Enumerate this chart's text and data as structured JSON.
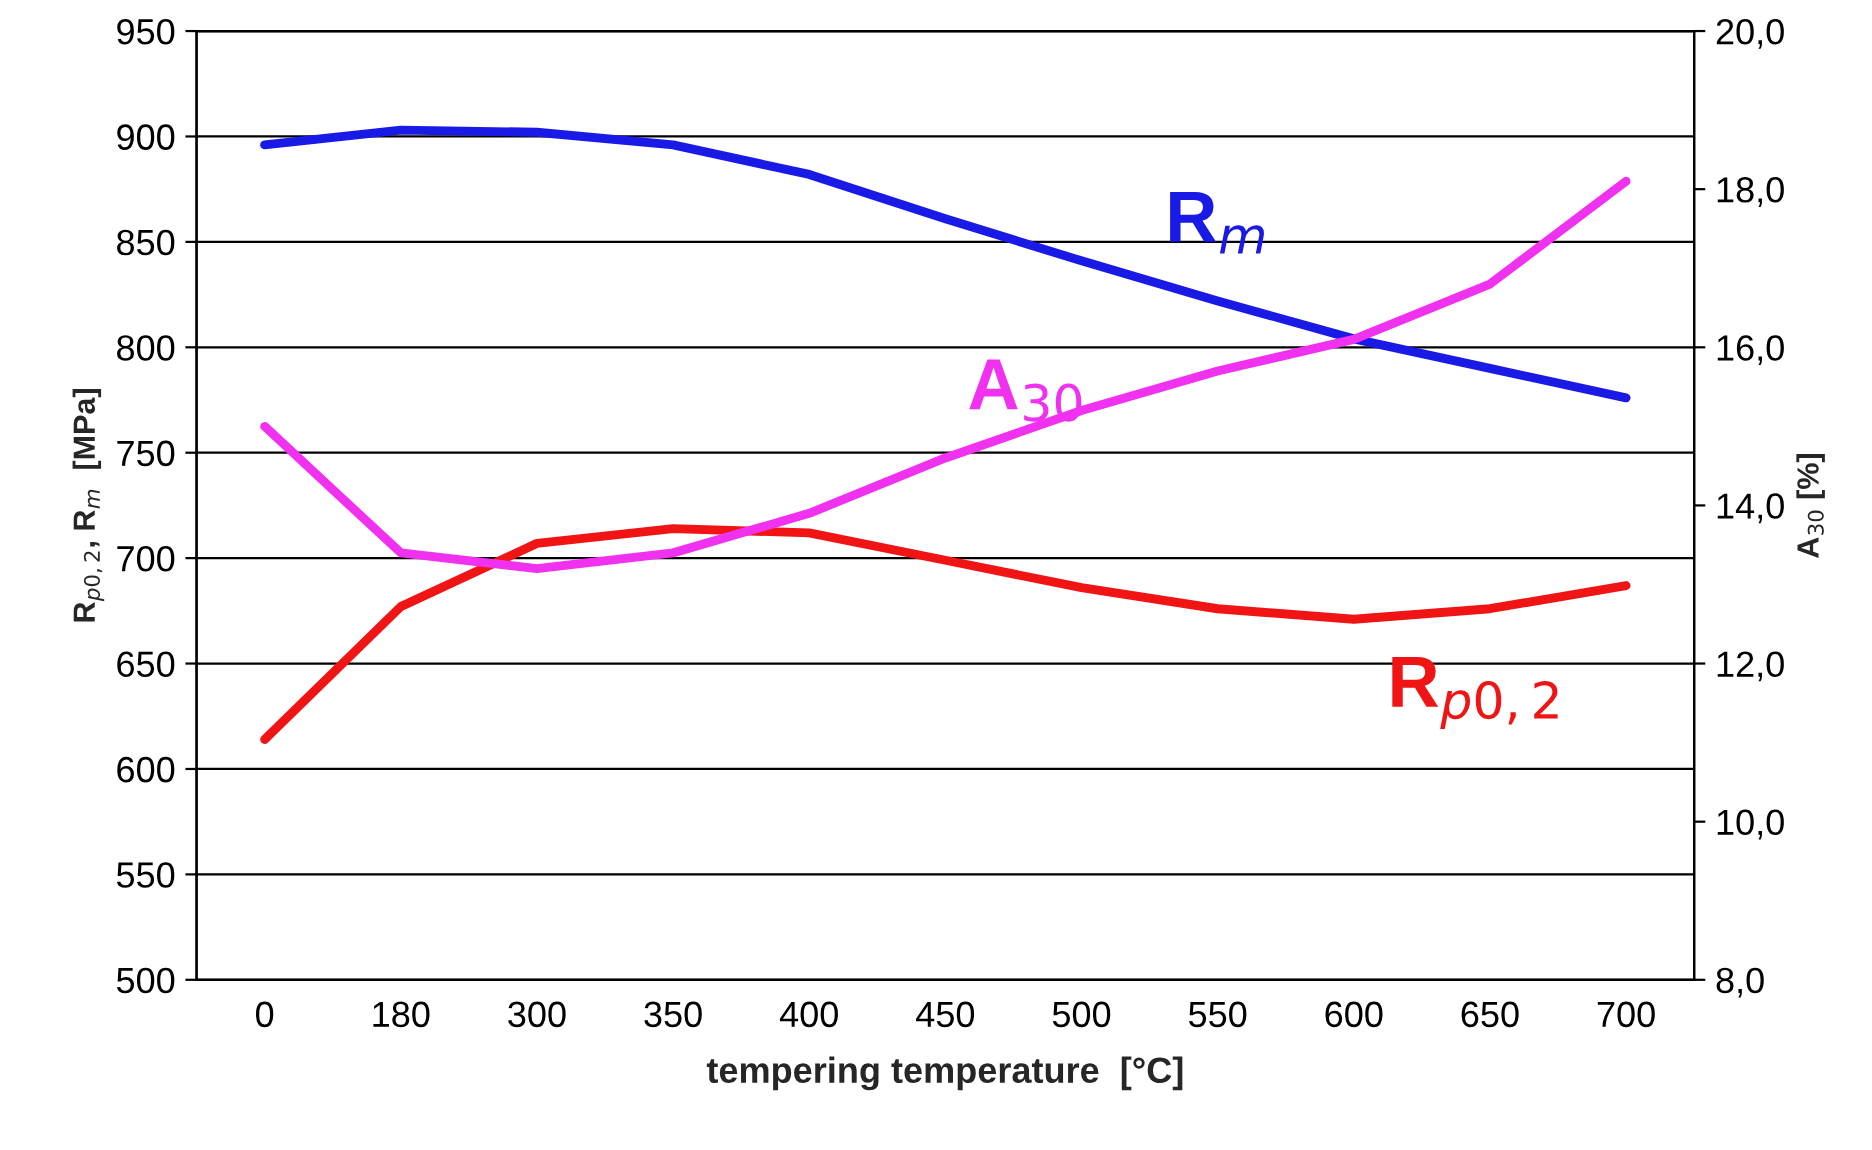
{
  "chart_data": {
    "type": "line",
    "xlabel": "tempering temperature  [°C]",
    "ylabel": "R$_{p0,2}$, R$_{m}$  [MPa]",
    "y2label": "A$_{30}$ [%]",
    "categories": [
      "0",
      "180",
      "300",
      "350",
      "400",
      "450",
      "500",
      "550",
      "600",
      "650",
      "700"
    ],
    "series": [
      {
        "name": "R$_{m}$",
        "color": "#1a1ae6",
        "values": [
          896,
          903,
          902,
          896,
          882,
          861,
          841,
          822,
          804,
          790,
          776
        ]
      },
      {
        "name": "A$_{30}$",
        "color": "#f032f0",
        "axis": "y2",
        "values": [
          15.0,
          13.4,
          13.2,
          13.4,
          13.9,
          14.6,
          15.2,
          15.7,
          16.1,
          16.8,
          18.1
        ]
      },
      {
        "name": "R$_{p0,2}$",
        "color": "#f01414",
        "values": [
          614,
          677,
          707,
          714,
          712,
          699,
          686,
          676,
          671,
          676,
          687
        ]
      }
    ],
    "ylim": [
      500,
      950
    ],
    "yticks": [
      500,
      550,
      600,
      650,
      700,
      750,
      800,
      850,
      900,
      950
    ],
    "y2lim": [
      8,
      20
    ],
    "y2ticks": [
      {
        "value": 8,
        "label": "8,0"
      },
      {
        "value": 10,
        "label": "10,0"
      },
      {
        "value": 12,
        "label": "12,0"
      },
      {
        "value": 14,
        "label": "14,0"
      },
      {
        "value": 16,
        "label": "16,0"
      },
      {
        "value": 18,
        "label": "18,0"
      },
      {
        "value": 20,
        "label": "20,0"
      }
    ],
    "grid": "y",
    "legend": false,
    "marker": "none",
    "line_style": "solid"
  }
}
